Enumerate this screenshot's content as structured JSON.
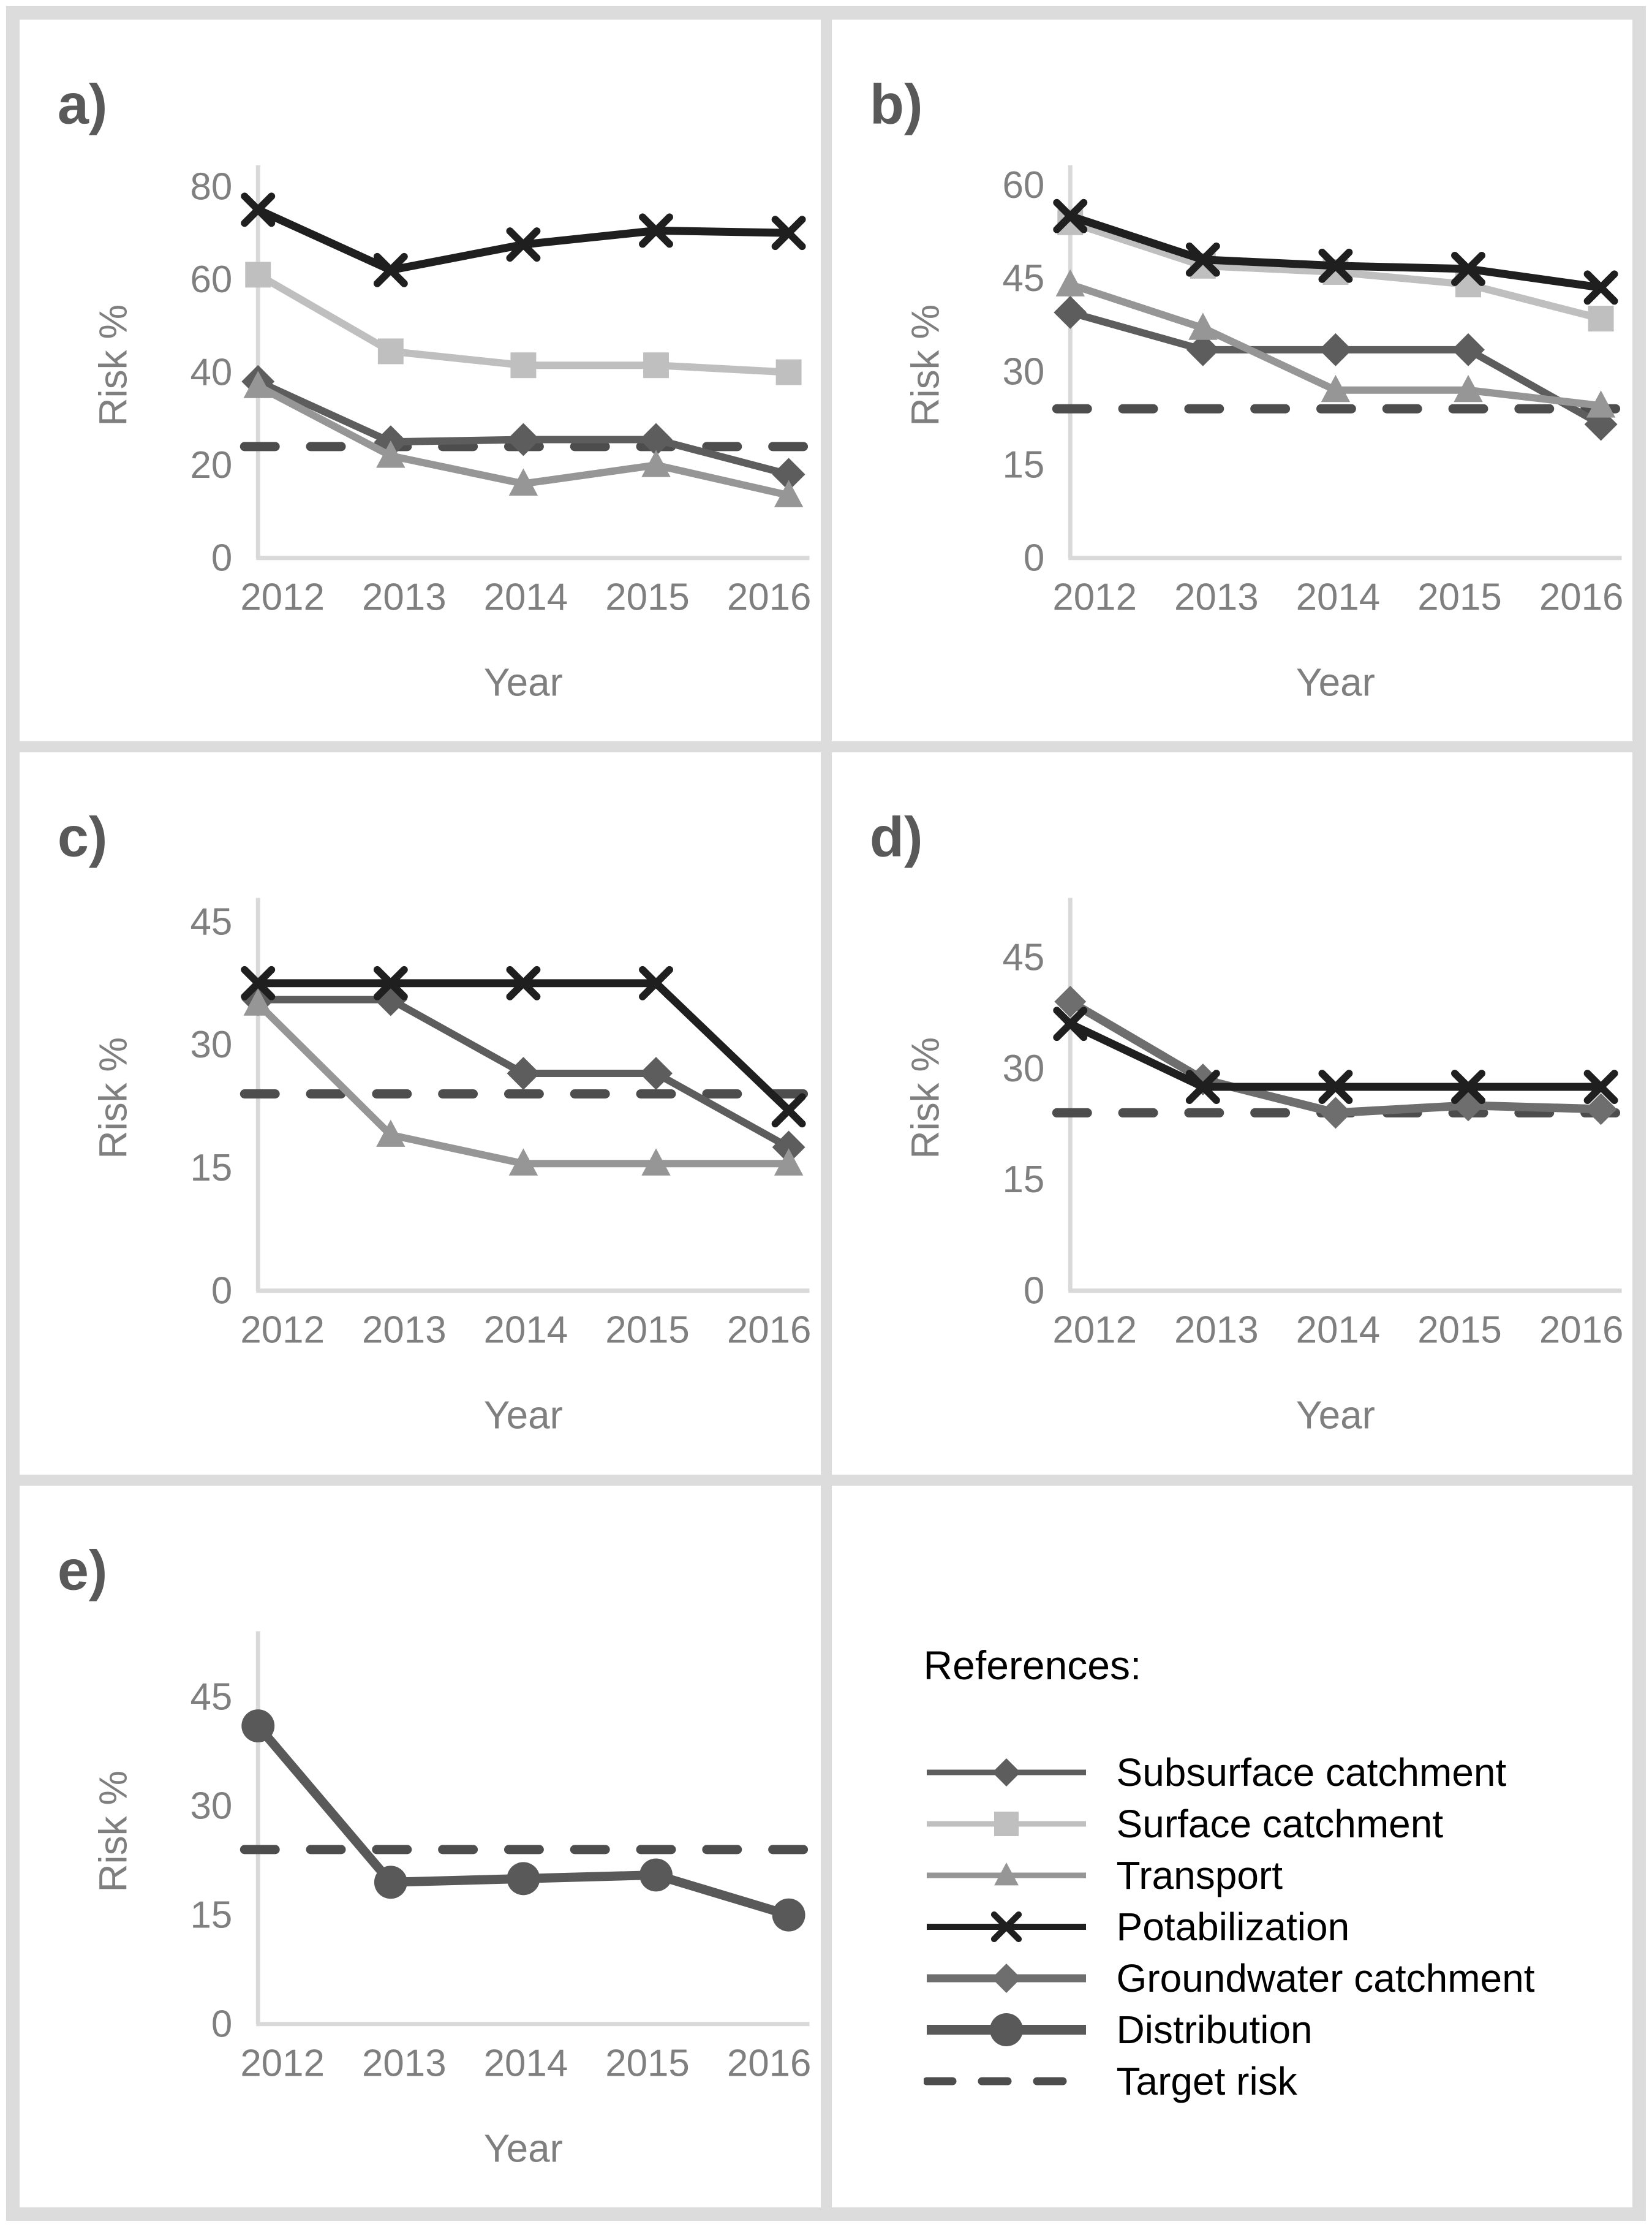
{
  "page": {
    "background": "#dcdcdc",
    "panel_background": "#ffffff",
    "axis_line_color": "#d9d9d9",
    "tick_label_color": "#7f7f7f",
    "panel_letter_color": "#595959"
  },
  "legend": {
    "title": "References:",
    "position": "bottom-right-panel",
    "items": [
      {
        "label": "Subsurface catchment",
        "style": "subsurface"
      },
      {
        "label": "Surface catchment",
        "style": "surface"
      },
      {
        "label": "Transport",
        "style": "transport"
      },
      {
        "label": "Potabilization",
        "style": "potabilization"
      },
      {
        "label": "Groundwater catchment",
        "style": "groundwater"
      },
      {
        "label": "Distribution",
        "style": "distribution"
      },
      {
        "label": "Target risk",
        "style": "target"
      }
    ]
  },
  "series_styles": {
    "subsurface": {
      "icon": "diamond-marker",
      "marker": "diamond",
      "color": "#5d5d5d",
      "line_width": 12,
      "marker_size": 27,
      "legend_line_width": 9,
      "legend_marker_size": 23
    },
    "surface": {
      "icon": "square-marker",
      "marker": "square",
      "color": "#bfbfbf",
      "line_width": 12,
      "marker_size": 21,
      "legend_line_width": 9,
      "legend_marker_size": 20
    },
    "transport": {
      "icon": "triangle-marker",
      "marker": "triangle",
      "color": "#969696",
      "line_width": 12,
      "marker_size": 25,
      "legend_line_width": 9,
      "legend_marker_size": 21
    },
    "potabilization": {
      "icon": "x-marker",
      "marker": "x",
      "color": "#1f1f1f",
      "line_width": 13,
      "marker_size": 22,
      "legend_line_width": 10,
      "legend_marker_size": 20
    },
    "groundwater": {
      "icon": "diamond-marker",
      "marker": "diamond",
      "color": "#6e6e6e",
      "line_width": 14,
      "marker_size": 26,
      "legend_line_width": 13,
      "legend_marker_size": 24
    },
    "distribution": {
      "icon": "circle-marker",
      "marker": "circle",
      "color": "#595959",
      "line_width": 15,
      "marker_size": 27,
      "legend_line_width": 16,
      "legend_marker_size": 27
    },
    "target": {
      "icon": "dash-segment",
      "marker": "dash",
      "color": "#4d4d4d",
      "line_width": 15,
      "legend_line_width": 13
    }
  },
  "chart_data": [
    {
      "type": "line",
      "panel_label": "a)",
      "xlabel": "Year",
      "ylabel": "Risk %",
      "x_categories": [
        "2012",
        "2013",
        "2014",
        "2015",
        "2016"
      ],
      "ylim": [
        0,
        83
      ],
      "yticks": [
        0,
        20,
        40,
        60,
        80
      ],
      "grid": false,
      "target_risk": 24,
      "series": [
        {
          "name": "Subsurface catchment",
          "style": "subsurface",
          "values": [
            38,
            25,
            25.5,
            25.5,
            18
          ]
        },
        {
          "name": "Surface catchment",
          "style": "surface",
          "values": [
            61,
            44.5,
            41.5,
            41.5,
            40
          ]
        },
        {
          "name": "Transport",
          "style": "transport",
          "values": [
            37,
            22,
            16,
            20,
            13.5
          ]
        },
        {
          "name": "Potabilization",
          "style": "potabilization",
          "values": [
            75,
            62,
            67.5,
            70.5,
            70
          ]
        }
      ]
    },
    {
      "type": "line",
      "panel_label": "b)",
      "xlabel": "Year",
      "ylabel": "Risk %",
      "x_categories": [
        "2012",
        "2013",
        "2014",
        "2015",
        "2016"
      ],
      "ylim": [
        0,
        62
      ],
      "yticks": [
        0,
        15,
        30,
        45,
        60
      ],
      "grid": false,
      "target_risk": 24,
      "series": [
        {
          "name": "Subsurface catchment",
          "style": "subsurface",
          "values": [
            39.5,
            33.5,
            33.5,
            33.5,
            21.5
          ]
        },
        {
          "name": "Surface catchment",
          "style": "surface",
          "values": [
            54,
            47,
            46,
            44,
            38.5
          ]
        },
        {
          "name": "Transport",
          "style": "transport",
          "values": [
            44,
            37,
            27,
            27,
            24.5
          ]
        },
        {
          "name": "Potabilization",
          "style": "potabilization",
          "values": [
            55,
            48,
            47,
            46.5,
            43.5
          ]
        }
      ]
    },
    {
      "type": "line",
      "panel_label": "c)",
      "xlabel": "Year",
      "ylabel": "Risk %",
      "x_categories": [
        "2012",
        "2013",
        "2014",
        "2015",
        "2016"
      ],
      "ylim": [
        0,
        47
      ],
      "yticks": [
        0,
        15,
        30,
        45
      ],
      "grid": false,
      "target_risk": 24,
      "series": [
        {
          "name": "Subsurface catchment",
          "style": "subsurface",
          "values": [
            35.5,
            35.5,
            26.5,
            26.5,
            17.5
          ]
        },
        {
          "name": "Transport",
          "style": "transport",
          "values": [
            35,
            19,
            15.5,
            15.5,
            15.5
          ]
        },
        {
          "name": "Potabilization",
          "style": "potabilization",
          "values": [
            37.5,
            37.5,
            37.5,
            37.5,
            22
          ]
        }
      ]
    },
    {
      "type": "line",
      "panel_label": "d)",
      "xlabel": "Year",
      "ylabel": "Risk %",
      "x_categories": [
        "2012",
        "2013",
        "2014",
        "2015",
        "2016"
      ],
      "ylim": [
        0,
        52
      ],
      "yticks": [
        0,
        15,
        30,
        45
      ],
      "grid": false,
      "target_risk": 24,
      "series": [
        {
          "name": "Groundwater catchment",
          "style": "groundwater",
          "values": [
            39,
            28.5,
            24,
            25,
            24.5
          ]
        },
        {
          "name": "Potabilization",
          "style": "potabilization",
          "values": [
            36,
            27.5,
            27.5,
            27.5,
            27.5
          ]
        }
      ]
    },
    {
      "type": "line",
      "panel_label": "e)",
      "xlabel": "Year",
      "ylabel": "Risk %",
      "x_categories": [
        "2012",
        "2013",
        "2014",
        "2015",
        "2016"
      ],
      "ylim": [
        0,
        53
      ],
      "yticks": [
        0,
        15,
        30,
        45
      ],
      "grid": false,
      "target_risk": 24,
      "series": [
        {
          "name": "Distribution",
          "style": "distribution",
          "values": [
            41,
            19.5,
            20,
            20.5,
            15
          ]
        }
      ]
    }
  ]
}
